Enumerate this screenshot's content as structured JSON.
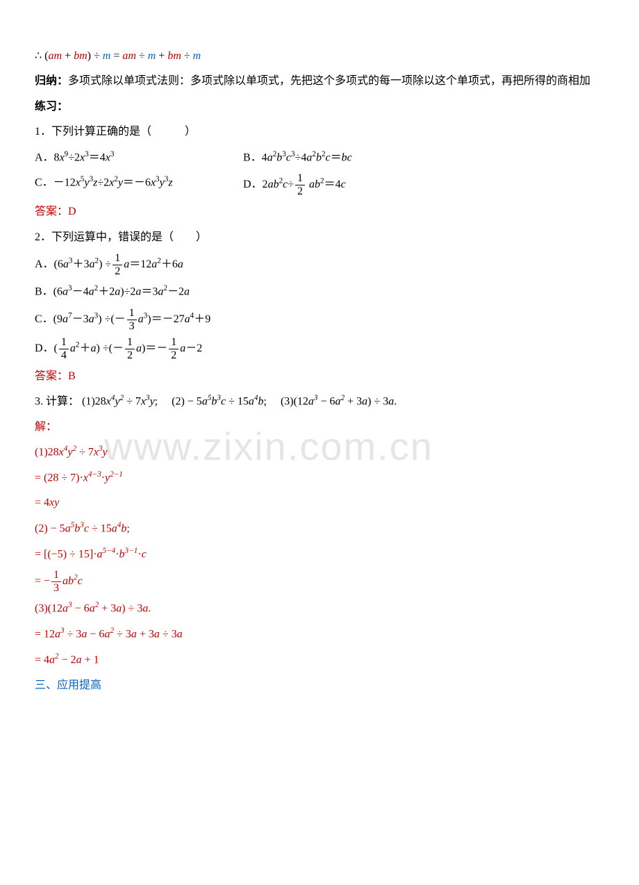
{
  "eq1_pre": "∴ (",
  "eq1_am1": "am",
  "eq1_plus1": " + ",
  "eq1_bm1": "bm",
  "eq1_mid1": ") ÷ ",
  "eq1_m1": "m",
  "eq1_eq": " = ",
  "eq1_am2": "am",
  "eq1_div1": " ÷ ",
  "eq1_m2": "m",
  "eq1_plus2": " + ",
  "eq1_bm2": "bm",
  "eq1_div2": " ÷ ",
  "eq1_m3": "m",
  "guina_label": "归纳：",
  "guina_text": "多项式除以单项式法则：多项式除以单项式，先把这个多项式的每一项除以这个单项式，再把所得的商相加",
  "practice_label": "练习：",
  "q1": "1．下列计算正确的是（   ）",
  "q1a_l": "A．8",
  "q1a_x9": "x",
  "q1a_m": "÷2",
  "q1a_x3": "x",
  "q1a_r": "＝4",
  "q1a_x3b": "x",
  "q1b_l": "B．4",
  "q1b_a2": "a",
  "q1b_b3": "b",
  "q1b_c3": "c",
  "q1b_m": "÷4",
  "q1b_a2b": "a",
  "q1b_b2": "b",
  "q1b_c": "c",
  "q1b_r": "＝",
  "q1b_bc": "bc",
  "q1c_l": "C．－12",
  "q1c_x5": "x",
  "q1c_y3": "y",
  "q1c_z": "z",
  "q1c_m": "÷2",
  "q1c_x2": "x",
  "q1c_y": "y",
  "q1c_eq": "＝－6",
  "q1c_x3": "x",
  "q1c_y3b": "y",
  "q1c_zb": "z",
  "q1d_l": "D．2",
  "q1d_ab2c": "ab",
  "q1d_c": "c",
  "q1d_m": "÷",
  "q1d_frac_n": "1",
  "q1d_frac_d": "2",
  "q1d_ab2": " ab",
  "q1d_r": "＝4",
  "q1d_cb": "c",
  "ans1": "答案：D",
  "q2": "2．下列运算中，错误的是（  ）",
  "q2a_l": "A．(6",
  "q2a_a3": "a",
  "q2a_p": "＋3",
  "q2a_a2": "a",
  "q2a_m": ") ÷",
  "q2a_fn": "1",
  "q2a_fd": "2",
  "q2a_a": "a",
  "q2a_eq": "＝12",
  "q2a_a2b": "a",
  "q2a_p2": "＋6",
  "q2a_ab": "a",
  "q2b_l": "B．(6",
  "q2b_a3": "a",
  "q2b_m1": "－4",
  "q2b_a2": "a",
  "q2b_p": "＋2",
  "q2b_a": "a",
  "q2b_m2": ")÷2",
  "q2b_ab": "a",
  "q2b_eq": "＝3",
  "q2b_a2b": "a",
  "q2b_m3": "－2",
  "q2b_ac": "a",
  "q2c_l": "C．(9",
  "q2c_a7": "a",
  "q2c_m": "－3",
  "q2c_a3": "a",
  "q2c_m2": ") ÷(－",
  "q2c_fn": "1",
  "q2c_fd": "3",
  "q2c_a3b": "a",
  "q2c_eq": ")＝－27",
  "q2c_a4": "a",
  "q2c_p": "＋9",
  "q2d_l": "D．(",
  "q2d_fn1": "1",
  "q2d_fd1": "4",
  "q2d_a2": "a",
  "q2d_p": "＋",
  "q2d_a": "a",
  "q2d_m": ") ÷(－",
  "q2d_fn2": "1",
  "q2d_fd2": "2",
  "q2d_ab": "a",
  "q2d_eq": ")＝－",
  "q2d_fn3": "1",
  "q2d_fd3": "2",
  "q2d_ac": "a",
  "q2d_m2": "－2",
  "ans2": "答案：B",
  "q3_label": "3. 计算：",
  "q3_1": "(1)28",
  "q3_1_x4": "x",
  "q3_1_y2": "y",
  "q3_1_m": " ÷ 7",
  "q3_1_x3": "x",
  "q3_1_y1": "y",
  "q3_1_s": "; ",
  "q3_2": "(2) − 5",
  "q3_2_a5": "a",
  "q3_2_b3": "b",
  "q3_2_c": "c",
  "q3_2_m": " ÷ 15",
  "q3_2_a4": "a",
  "q3_2_b": "b",
  "q3_2_s": "; ",
  "q3_3": "(3)(12",
  "q3_3_a3": "a",
  "q3_3_m1": " − 6",
  "q3_3_a2": "a",
  "q3_3_p": " + 3",
  "q3_3_a": "a",
  "q3_3_m2": ") ÷ 3",
  "q3_3_ab": "a",
  "q3_3_e": ".",
  "sol_label": "解：",
  "s1_1": "(1)28",
  "s1_1_x4": "x",
  "s1_1_y2": "y",
  "s1_1_m": " ÷ 7",
  "s1_1_x3": "x",
  "s1_1_y": "y",
  "s1_2": "= (28 ÷ 7)·",
  "s1_2_x": "x",
  "s1_2_e1": "4−3",
  "s1_2_d": "·",
  "s1_2_y": "y",
  "s1_2_e2": "2−1",
  "s1_3": "= 4",
  "s1_3_xy": "xy",
  "s2_1": "(2) − 5",
  "s2_1_a5": "a",
  "s2_1_b3": "b",
  "s2_1_c": "c",
  "s2_1_m": " ÷ 15",
  "s2_1_a4": "a",
  "s2_1_b": "b",
  "s2_1_e": ";",
  "s2_2": "= [(−5) ÷ 15]·",
  "s2_2_a": "a",
  "s2_2_e1": "5−4",
  "s2_2_d": "·",
  "s2_2_b": "b",
  "s2_2_e2": "3−1",
  "s2_2_d2": "·",
  "s2_2_c": "c",
  "s2_3": "= −",
  "s2_3_fn": "1",
  "s2_3_fd": "3",
  "s2_3_ab": "ab",
  "s2_3_c": "c",
  "s3_1": "(3)(12",
  "s3_1_a3": "a",
  "s3_1_m1": " − 6",
  "s3_1_a2": "a",
  "s3_1_p": " + 3",
  "s3_1_a": "a",
  "s3_1_m2": ") ÷ 3",
  "s3_1_ab": "a",
  "s3_1_e": ".",
  "s3_2": "= 12",
  "s3_2_a3": "a",
  "s3_2_m1": " ÷ 3",
  "s3_2_a1": "a",
  "s3_2_m2": " − 6",
  "s3_2_a2": "a",
  "s3_2_m3": " ÷ 3",
  "s3_2_a1b": "a",
  "s3_2_p": " + 3",
  "s3_2_a1c": "a",
  "s3_2_m4": " ÷ 3",
  "s3_2_a1d": "a",
  "s3_3": "= 4",
  "s3_3_a2": "a",
  "s3_3_m": " − 2",
  "s3_3_a": "a",
  "s3_3_p": " + 1",
  "section3": "三、应用提高",
  "watermark": "www.zixin.com.cn"
}
